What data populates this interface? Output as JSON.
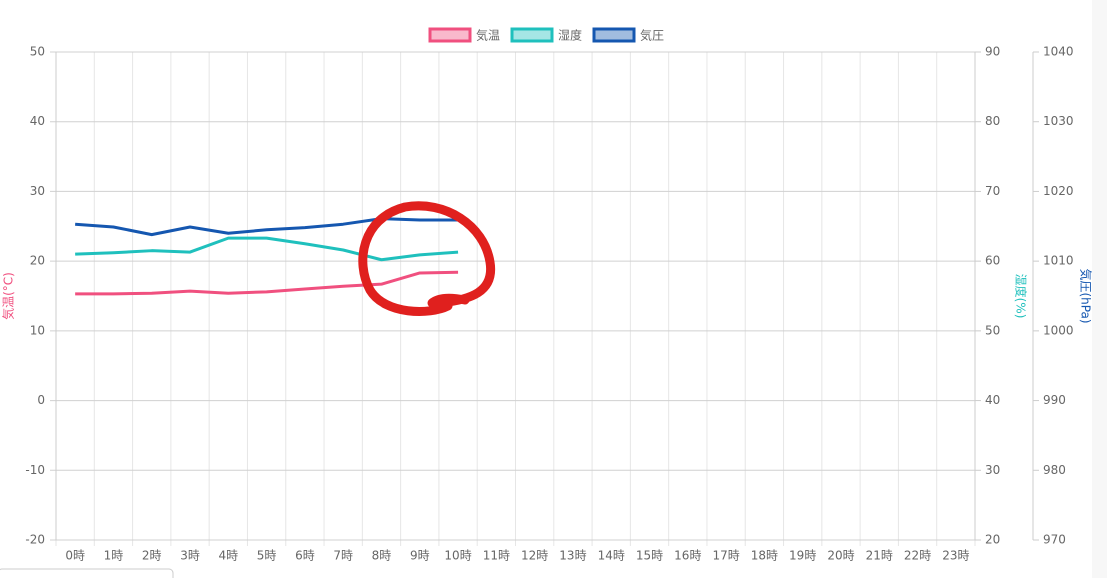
{
  "chart_data": {
    "type": "line",
    "categories": [
      "0時",
      "1時",
      "2時",
      "3時",
      "4時",
      "5時",
      "6時",
      "7時",
      "8時",
      "9時",
      "10時",
      "11時",
      "12時",
      "13時",
      "14時",
      "15時",
      "16時",
      "17時",
      "18時",
      "19時",
      "20時",
      "21時",
      "22時",
      "23時"
    ],
    "series": [
      {
        "name": "気温",
        "color": "#f0507f",
        "axis": "y",
        "values": [
          15.3,
          15.3,
          15.4,
          15.7,
          15.4,
          15.6,
          16.0,
          16.4,
          16.7,
          18.3,
          18.4,
          null,
          null,
          null,
          null,
          null,
          null,
          null,
          null,
          null,
          null,
          null,
          null,
          null
        ]
      },
      {
        "name": "湿度",
        "color": "#1fc0bd",
        "axis": "y2",
        "values": [
          61.0,
          61.2,
          61.5,
          61.3,
          63.3,
          63.3,
          62.5,
          61.6,
          60.2,
          60.9,
          61.3,
          null,
          null,
          null,
          null,
          null,
          null,
          null,
          null,
          null,
          null,
          null,
          null,
          null
        ]
      },
      {
        "name": "気圧",
        "color": "#1557b0",
        "axis": "y3",
        "values": [
          1015.3,
          1014.9,
          1013.8,
          1014.9,
          1014.0,
          1014.5,
          1014.8,
          1015.3,
          1016.1,
          1015.9,
          1015.9,
          null,
          null,
          null,
          null,
          null,
          null,
          null,
          null,
          null,
          null,
          null,
          null,
          null
        ]
      }
    ],
    "y_label": "気温(°C)",
    "y2_label": "湿度(%)",
    "y3_label": "気圧(hPa)",
    "ylim": [
      -20,
      50
    ],
    "yticks": [
      -20,
      -10,
      0,
      10,
      20,
      30,
      40,
      50
    ],
    "y2lim": [
      20,
      90
    ],
    "y2ticks": [
      20,
      30,
      40,
      50,
      60,
      70,
      80,
      90
    ],
    "y3lim": [
      970,
      1040
    ],
    "y3ticks": [
      970,
      980,
      990,
      1000,
      1010,
      1020,
      1030,
      1040
    ],
    "grid": true,
    "legend": "top"
  }
}
